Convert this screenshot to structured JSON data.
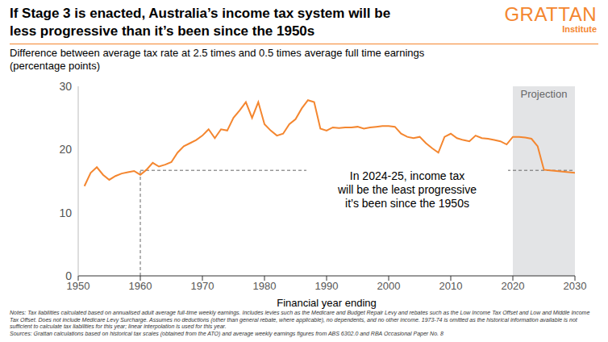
{
  "chart_data": {
    "type": "line",
    "title": "If Stage 3 is enacted, Australia’s income tax system will be\nless progressive than it’s been since the 1950s",
    "brand": "GRATTAN",
    "brand_sub": "Institute",
    "subtitle": "Difference between average tax rate at 2.5 times and 0.5 times average full time earnings\n(percentage points)",
    "x_label": "Financial year ending",
    "x": [
      1951,
      1952,
      1953,
      1954,
      1955,
      1956,
      1957,
      1958,
      1959,
      1960,
      1961,
      1962,
      1963,
      1964,
      1965,
      1966,
      1967,
      1968,
      1969,
      1970,
      1971,
      1972,
      1973,
      1974,
      1975,
      1976,
      1977,
      1978,
      1979,
      1980,
      1981,
      1982,
      1983,
      1984,
      1985,
      1986,
      1987,
      1988,
      1989,
      1990,
      1991,
      1992,
      1993,
      1994,
      1995,
      1996,
      1997,
      1998,
      1999,
      2000,
      2001,
      2002,
      2003,
      2004,
      2005,
      2006,
      2007,
      2008,
      2009,
      2010,
      2011,
      2012,
      2013,
      2014,
      2015,
      2016,
      2017,
      2018,
      2019,
      2020,
      2021,
      2022,
      2023,
      2024,
      2025,
      2026,
      2027,
      2028,
      2029,
      2030
    ],
    "values": [
      14.2,
      16.3,
      17.2,
      16.0,
      15.2,
      15.8,
      16.2,
      16.4,
      16.6,
      16.0,
      16.8,
      17.9,
      17.3,
      17.6,
      18.0,
      19.5,
      20.5,
      21.0,
      21.5,
      22.2,
      23.2,
      21.8,
      23.2,
      23.0,
      25.0,
      26.2,
      27.5,
      25.0,
      27.5,
      24.0,
      23.0,
      22.2,
      22.5,
      24.0,
      24.8,
      26.5,
      27.8,
      27.5,
      23.3,
      23.0,
      23.5,
      23.4,
      23.5,
      23.5,
      23.6,
      23.3,
      23.5,
      23.6,
      23.7,
      23.7,
      23.6,
      22.5,
      22.0,
      21.8,
      22.0,
      21.0,
      20.2,
      19.5,
      22.0,
      22.5,
      21.8,
      21.5,
      21.3,
      22.2,
      21.8,
      21.7,
      21.5,
      21.3,
      20.8,
      22.0,
      22.0,
      21.9,
      21.7,
      20.5,
      16.8,
      16.7,
      16.6,
      16.5,
      16.4,
      16.3
    ],
    "color": "#f4862f",
    "xlim": [
      1950,
      2030
    ],
    "xticks": [
      1950,
      1960,
      1970,
      1980,
      1990,
      2000,
      2010,
      2020,
      2030
    ],
    "ylim": [
      0,
      30
    ],
    "yticks": [
      0,
      10,
      20,
      30
    ],
    "grid": false,
    "projection": {
      "x": [
        2020,
        2030
      ],
      "label": "Projection"
    },
    "reference": {
      "x": 1960,
      "y": 16.7
    },
    "annotation": "In 2024-25, income tax\nwill be the least progressive\nit’s been since the 1950s",
    "notes": "Notes: Tax liabilities calculated based on annualised adult average full-time weekly earnings. Includes levies such as the Medicare and Budget Repair Levy and rebates such as the Low Income Tax Offset and Low and Middle Income Tax Offset. Does not include Medicare Levy Surcharge. Assumes no deductions (other than general rebate, where applicable), no dependents, and no other income. 1973-74 is omitted as the historical information available is not sufficient to calculate tax liabilities for this year; linear interpolation is used for this year.",
    "sources": "Sources: Grattan calculations based on historical tax scales (obtained from the ATO) and average weekly earnings figures from ABS 6302.0 and RBA Occasional Paper No. 8"
  }
}
